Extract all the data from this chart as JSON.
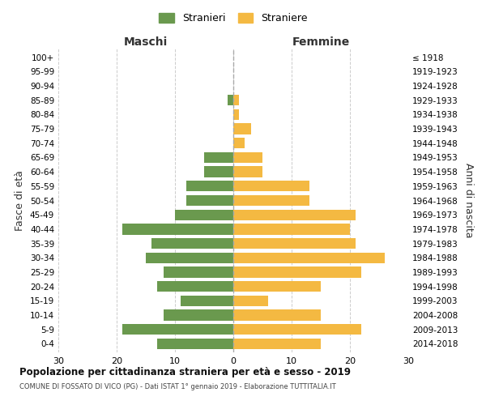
{
  "age_groups": [
    "100+",
    "95-99",
    "90-94",
    "85-89",
    "80-84",
    "75-79",
    "70-74",
    "65-69",
    "60-64",
    "55-59",
    "50-54",
    "45-49",
    "40-44",
    "35-39",
    "30-34",
    "25-29",
    "20-24",
    "15-19",
    "10-14",
    "5-9",
    "0-4"
  ],
  "birth_years": [
    "≤ 1918",
    "1919-1923",
    "1924-1928",
    "1929-1933",
    "1934-1938",
    "1939-1943",
    "1944-1948",
    "1949-1953",
    "1954-1958",
    "1959-1963",
    "1964-1968",
    "1969-1973",
    "1974-1978",
    "1979-1983",
    "1984-1988",
    "1989-1993",
    "1994-1998",
    "1999-2003",
    "2004-2008",
    "2009-2013",
    "2014-2018"
  ],
  "males": [
    0,
    0,
    0,
    1,
    0,
    0,
    0,
    5,
    5,
    8,
    8,
    10,
    19,
    14,
    15,
    12,
    13,
    9,
    12,
    19,
    13
  ],
  "females": [
    0,
    0,
    0,
    1,
    1,
    3,
    2,
    5,
    5,
    13,
    13,
    21,
    20,
    21,
    26,
    22,
    15,
    6,
    15,
    22,
    15
  ],
  "male_color": "#6a994e",
  "female_color": "#f4b942",
  "background_color": "#ffffff",
  "grid_color": "#cccccc",
  "dashed_line_color": "#aaaaaa",
  "title": "Popolazione per cittadinanza straniera per età e sesso - 2019",
  "subtitle": "COMUNE DI FOSSATO DI VICO (PG) - Dati ISTAT 1° gennaio 2019 - Elaborazione TUTTITALIA.IT",
  "left_label": "Maschi",
  "right_label": "Femmine",
  "ylabel_left": "Fasce di età",
  "ylabel_right": "Anni di nascita",
  "legend_male": "Stranieri",
  "legend_female": "Straniere",
  "xlim": 30,
  "bar_height": 0.75
}
